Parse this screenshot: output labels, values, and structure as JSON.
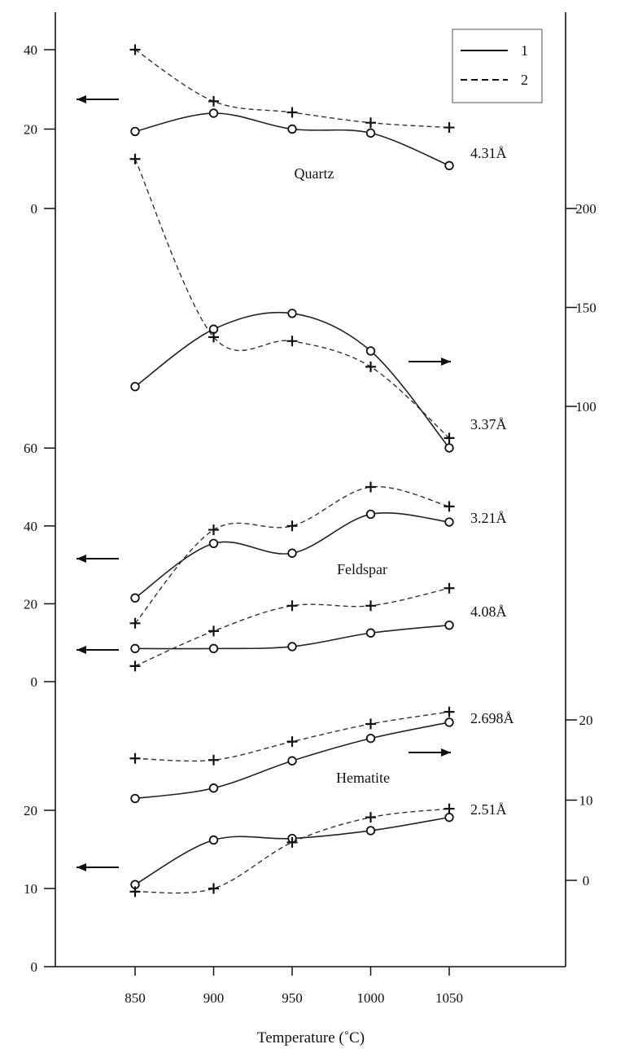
{
  "chart_data": {
    "type": "line",
    "xlabel": "Temperature (˚C)",
    "x_ticks": [
      850,
      900,
      950,
      1000,
      1050
    ],
    "legend": {
      "entries": [
        {
          "label": "1",
          "style": "solid"
        },
        {
          "label": "2",
          "style": "dashed"
        }
      ],
      "placement": "top-right"
    },
    "grid": false,
    "mineral_labels": [
      "Quartz",
      "Feldspar",
      "Hematite"
    ],
    "left_axes": [
      {
        "id": "quartz",
        "ticks": [
          40,
          20,
          0
        ],
        "range": [
          0,
          40
        ]
      },
      {
        "id": "feldspar",
        "ticks": [
          60,
          40,
          20,
          0
        ],
        "range": [
          0,
          60
        ]
      },
      {
        "id": "hematite",
        "ticks": [
          20,
          10,
          0
        ],
        "range": [
          0,
          20
        ]
      }
    ],
    "right_axes": [
      {
        "id": "quartz",
        "ticks": [
          200,
          150,
          100
        ],
        "range": [
          100,
          200
        ]
      },
      {
        "id": "hematite",
        "ticks": [
          20,
          10,
          0
        ],
        "range": [
          0,
          20
        ]
      }
    ],
    "series": [
      {
        "peak": "4.31Å",
        "mineral": "Quartz",
        "axis": "quartz-left",
        "sample1": [
          19.4,
          24.0,
          20.0,
          19.0,
          10.8
        ],
        "sample2": [
          40.0,
          27.0,
          24.2,
          21.6,
          20.4
        ]
      },
      {
        "peak": "3.37Å",
        "mineral": "Quartz",
        "axis": "quartz-right",
        "sample1": [
          110,
          139,
          147,
          128,
          79
        ],
        "sample2": [
          225,
          135,
          133,
          120,
          84
        ]
      },
      {
        "peak": "3.21Å",
        "mineral": "Feldspar",
        "axis": "feldspar-left",
        "sample1": [
          21.5,
          35.5,
          33.0,
          43.0,
          41.0
        ],
        "sample2": [
          15.0,
          39.0,
          40.0,
          50.0,
          45.0
        ]
      },
      {
        "peak": "4.08Å",
        "mineral": "Feldspar",
        "axis": "feldspar-left",
        "sample1": [
          8.5,
          8.5,
          9.0,
          12.5,
          14.5
        ],
        "sample2": [
          4.0,
          13.0,
          19.5,
          19.5,
          24.0
        ]
      },
      {
        "peak": "2.698Å",
        "mineral": "Hematite",
        "axis": "hematite-right",
        "sample1": [
          10.2,
          11.5,
          14.9,
          17.7,
          19.7
        ],
        "sample2": [
          15.2,
          15.0,
          17.3,
          19.5,
          21.0
        ]
      },
      {
        "peak": "2.51Å",
        "mineral": "Hematite",
        "axis": "hematite-left",
        "sample1": [
          10.5,
          16.2,
          16.4,
          17.4,
          19.1
        ],
        "sample2": [
          9.6,
          10.0,
          15.9,
          19.1,
          20.2
        ]
      }
    ]
  }
}
